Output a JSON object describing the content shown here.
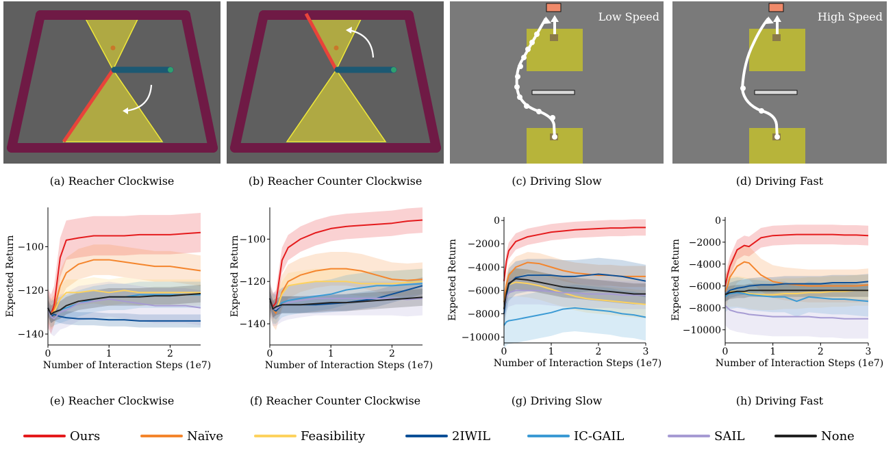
{
  "top_captions": [
    "(a) Reacher Clockwise",
    "(b) Reacher Counter Clockwise",
    "(c) Driving Slow",
    "(d) Driving Fast"
  ],
  "bottom_captions": [
    "(e) Reacher Clockwise",
    "(f) Reacher Counter Clockwise",
    "(g) Driving Slow",
    "(h) Driving Fast"
  ],
  "scene_labels": {
    "low": "Low Speed",
    "high": "High Speed"
  },
  "colors": {
    "Ours": "#e41a1c",
    "Naïve": "#f4852c",
    "Feasibility": "#fdd25e",
    "2IWIL": "#0c4f97",
    "IC-GAIL": "#3b9ad4",
    "SAIL": "#a69bd3",
    "None": "#222222",
    "arena": "#5f5f5f",
    "rail": "#6f1a45",
    "cone": "#c9c23a",
    "road": "#7a7a7a",
    "pad": "#b7b43a",
    "goal": "#f08a6a"
  },
  "legend": [
    "Ours",
    "Naïve",
    "Feasibility",
    "2IWIL",
    "IC-GAIL",
    "SAIL",
    "None"
  ],
  "chart_data": [
    {
      "type": "line",
      "title": "(e) Reacher Clockwise",
      "xlabel": "Number of Interaction Steps (1e7)",
      "ylabel": "Expected Return",
      "xlim": [
        0,
        2.5
      ],
      "ylim": [
        -145,
        -82
      ],
      "xticks": [
        "0",
        "1",
        "2"
      ],
      "yticks": [
        "−100",
        "−120",
        "−140"
      ],
      "ytick_values": [
        -100,
        -120,
        -140
      ],
      "xtick_values": [
        0,
        1,
        2
      ],
      "x": [
        0,
        0.05,
        0.1,
        0.2,
        0.3,
        0.5,
        0.75,
        1.0,
        1.25,
        1.5,
        1.75,
        2.0,
        2.25,
        2.5
      ],
      "series": [
        {
          "name": "Ours",
          "values": [
            -128,
            -131,
            -127,
            -105,
            -97,
            -96,
            -95,
            -95,
            -95,
            -94.5,
            -94.5,
            -94.5,
            -94,
            -93.5
          ],
          "band": 9
        },
        {
          "name": "Naïve",
          "values": [
            -128,
            -131,
            -129,
            -118,
            -112,
            -108,
            -106,
            -106,
            -107,
            -108,
            -109,
            -109,
            -110,
            -111
          ],
          "band": 7
        },
        {
          "name": "Feasibility",
          "values": [
            -128,
            -131,
            -130,
            -124,
            -121,
            -121,
            -120,
            -121,
            -120,
            -121,
            -121,
            -121,
            -121,
            -121
          ],
          "band": 6
        },
        {
          "name": "2IWIL",
          "values": [
            -128,
            -132,
            -131,
            -132,
            -132.5,
            -133,
            -133,
            -133.5,
            -133.5,
            -134,
            -134,
            -134,
            -134,
            -134
          ],
          "band": 3
        },
        {
          "name": "IC-GAIL",
          "values": [
            -128,
            -131,
            -130,
            -129,
            -128,
            -126,
            -124,
            -123,
            -123,
            -122,
            -122,
            -122,
            -122,
            -122
          ],
          "band": 6
        },
        {
          "name": "SAIL",
          "values": [
            -128,
            -132,
            -133,
            -130,
            -129,
            -126,
            -125,
            -124,
            -125,
            -126,
            -127,
            -127,
            -127,
            -128
          ],
          "band": 8
        },
        {
          "name": "None",
          "values": [
            -128,
            -131,
            -130,
            -129,
            -127,
            -125,
            -124,
            -123,
            -123,
            -123,
            -122.5,
            -122.5,
            -122,
            -121.5
          ],
          "band": 4
        }
      ]
    },
    {
      "type": "line",
      "title": "(f) Reacher Counter Clockwise",
      "xlabel": "Number of Interaction Steps (1e7)",
      "ylabel": "Expected Return",
      "xlim": [
        0,
        2.5
      ],
      "ylim": [
        -150,
        -85
      ],
      "xticks": [
        "0",
        "1",
        "2"
      ],
      "yticks": [
        "−100",
        "−120",
        "−140"
      ],
      "ytick_values": [
        -100,
        -120,
        -140
      ],
      "xtick_values": [
        0,
        1,
        2
      ],
      "x": [
        0,
        0.05,
        0.1,
        0.2,
        0.3,
        0.5,
        0.75,
        1.0,
        1.25,
        1.5,
        1.75,
        2.0,
        2.25,
        2.5
      ],
      "series": [
        {
          "name": "Ours",
          "values": [
            -128,
            -132,
            -130,
            -110,
            -104,
            -100,
            -97,
            -95,
            -94,
            -93.5,
            -93,
            -92.5,
            -91.5,
            -91
          ],
          "band": 6
        },
        {
          "name": "Naïve",
          "values": [
            -128,
            -133,
            -135,
            -125,
            -120,
            -117,
            -115,
            -114,
            -114,
            -115,
            -117,
            -119,
            -119.5,
            -119
          ],
          "band": 8
        },
        {
          "name": "Feasibility",
          "values": [
            -128,
            -133,
            -134,
            -126,
            -122,
            -121,
            -120,
            -120,
            -120,
            -121,
            -121,
            -121,
            -120.5,
            -120
          ],
          "band": 6
        },
        {
          "name": "2IWIL",
          "values": [
            -128,
            -133,
            -134,
            -131,
            -131,
            -131,
            -131,
            -130.5,
            -130,
            -129,
            -128,
            -126,
            -124,
            -122
          ],
          "band": 4
        },
        {
          "name": "IC-GAIL",
          "values": [
            -128,
            -133,
            -133,
            -130,
            -129,
            -128,
            -127,
            -126,
            -124,
            -123,
            -122,
            -122,
            -121.5,
            -121
          ],
          "band": 7
        },
        {
          "name": "SAIL",
          "values": [
            -128,
            -133,
            -133,
            -131,
            -130,
            -129,
            -128,
            -128,
            -128,
            -128,
            -128,
            -128,
            -128.5,
            -128
          ],
          "band": 8
        },
        {
          "name": "None",
          "values": [
            -128,
            -133,
            -132,
            -131,
            -131,
            -131,
            -130.5,
            -130,
            -130,
            -129.5,
            -129,
            -128.5,
            -128,
            -127.5
          ],
          "band": 4
        }
      ]
    },
    {
      "type": "line",
      "title": "(g) Driving Slow",
      "xlabel": "Number of Interaction Steps (1e7)",
      "ylabel": "Expected Return",
      "xlim": [
        0,
        3
      ],
      "ylim": [
        -10500,
        300
      ],
      "xticks": [
        "0",
        "1",
        "2",
        "3"
      ],
      "yticks": [
        "0",
        "−2000",
        "−4000",
        "−6000",
        "−8000",
        "−10000"
      ],
      "ytick_values": [
        0,
        -2000,
        -4000,
        -6000,
        -8000,
        -10000
      ],
      "xtick_values": [
        0,
        1,
        2,
        3
      ],
      "x": [
        0,
        0.05,
        0.1,
        0.25,
        0.5,
        0.75,
        1.0,
        1.25,
        1.5,
        1.75,
        2.0,
        2.25,
        2.5,
        2.75,
        3.0
      ],
      "series": [
        {
          "name": "Ours",
          "values": [
            -5200,
            -3500,
            -2600,
            -1800,
            -1400,
            -1200,
            -1000,
            -900,
            -800,
            -750,
            -700,
            -650,
            -650,
            -600,
            -600
          ],
          "band": 700
        },
        {
          "name": "Naïve",
          "values": [
            -7000,
            -5500,
            -4700,
            -4000,
            -3600,
            -3700,
            -4000,
            -4300,
            -4500,
            -4600,
            -4700,
            -4700,
            -4800,
            -4800,
            -4800
          ],
          "band": 900
        },
        {
          "name": "Feasibility",
          "values": [
            -7500,
            -6200,
            -5500,
            -5300,
            -5400,
            -5600,
            -5900,
            -6200,
            -6500,
            -6700,
            -6800,
            -6900,
            -7000,
            -7100,
            -7200
          ],
          "band": 1200
        },
        {
          "name": "2IWIL",
          "values": [
            -8000,
            -6500,
            -5500,
            -4900,
            -4700,
            -4700,
            -4700,
            -4800,
            -4800,
            -4700,
            -4600,
            -4700,
            -4800,
            -5000,
            -5200
          ],
          "band": 1400
        },
        {
          "name": "IC-GAIL",
          "values": [
            -9000,
            -8700,
            -8600,
            -8500,
            -8300,
            -8100,
            -7900,
            -7600,
            -7500,
            -7600,
            -7700,
            -7800,
            -8000,
            -8100,
            -8300
          ],
          "band": 2000
        },
        {
          "name": "SAIL",
          "values": [
            -7600,
            -6600,
            -6200,
            -6000,
            -6000,
            -6000,
            -6100,
            -6200,
            -6200,
            -6300,
            -6300,
            -6300,
            -6400,
            -6400,
            -6400
          ],
          "band": 1200
        },
        {
          "name": "None",
          "values": [
            -7600,
            -6200,
            -5400,
            -5000,
            -5100,
            -5300,
            -5500,
            -5700,
            -5800,
            -5900,
            -6000,
            -6100,
            -6200,
            -6300,
            -6300
          ],
          "band": 900
        }
      ]
    },
    {
      "type": "line",
      "title": "(h) Driving Fast",
      "xlabel": "Number of Interaction Steps (1e7)",
      "ylabel": "Expected Return",
      "xlim": [
        0,
        3
      ],
      "ylim": [
        -11200,
        300
      ],
      "xticks": [
        "0",
        "1",
        "2",
        "3"
      ],
      "yticks": [
        "0",
        "−2000",
        "−4000",
        "−6000",
        "−8000",
        "−10000"
      ],
      "ytick_values": [
        0,
        -2000,
        -4000,
        -6000,
        -8000,
        -10000
      ],
      "xtick_values": [
        0,
        1,
        2,
        3
      ],
      "x": [
        0,
        0.05,
        0.1,
        0.25,
        0.4,
        0.5,
        0.75,
        1.0,
        1.25,
        1.5,
        1.75,
        2.0,
        2.25,
        2.5,
        2.75,
        3.0
      ],
      "series": [
        {
          "name": "Ours",
          "values": [
            -6000,
            -5000,
            -4200,
            -2700,
            -2300,
            -2400,
            -1600,
            -1400,
            -1350,
            -1300,
            -1300,
            -1300,
            -1300,
            -1350,
            -1350,
            -1400
          ],
          "band": 900
        },
        {
          "name": "Naïve",
          "values": [
            -6500,
            -6000,
            -5200,
            -4200,
            -3800,
            -3900,
            -5000,
            -5600,
            -5800,
            -5900,
            -6000,
            -6000,
            -6000,
            -6000,
            -6000,
            -5900
          ],
          "band": 1500
        },
        {
          "name": "Feasibility",
          "values": [
            -6800,
            -6600,
            -6500,
            -6500,
            -6600,
            -6700,
            -6800,
            -6800,
            -6700,
            -6700,
            -6600,
            -6600,
            -6500,
            -6500,
            -6400,
            -6400
          ],
          "band": 1400
        },
        {
          "name": "2IWIL",
          "values": [
            -6800,
            -6600,
            -6400,
            -6200,
            -6100,
            -6000,
            -5900,
            -5900,
            -5800,
            -5800,
            -5800,
            -5800,
            -5700,
            -5700,
            -5700,
            -5600
          ],
          "band": 700
        },
        {
          "name": "IC-GAIL",
          "values": [
            -7000,
            -6800,
            -6700,
            -6600,
            -6700,
            -6800,
            -6900,
            -7000,
            -7000,
            -7400,
            -7000,
            -7100,
            -7200,
            -7200,
            -7300,
            -7400
          ],
          "band": 1400
        },
        {
          "name": "SAIL",
          "values": [
            -7800,
            -8000,
            -8200,
            -8400,
            -8500,
            -8600,
            -8700,
            -8800,
            -8800,
            -8800,
            -8800,
            -8900,
            -8900,
            -9000,
            -9000,
            -9000
          ],
          "band": 1800
        },
        {
          "name": "None",
          "values": [
            -6800,
            -6700,
            -6600,
            -6500,
            -6500,
            -6400,
            -6400,
            -6400,
            -6400,
            -6400,
            -6400,
            -6400,
            -6400,
            -6400,
            -6400,
            -6400
          ],
          "band": 600
        }
      ]
    }
  ]
}
